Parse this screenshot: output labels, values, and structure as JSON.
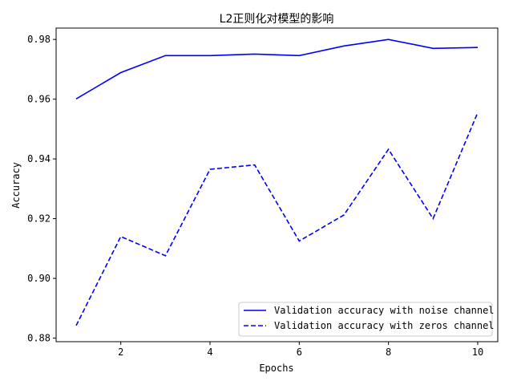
{
  "chart_data": {
    "type": "line",
    "title": "L2正则化对模型的影响",
    "xlabel": "Epochs",
    "ylabel": "Accuracy",
    "xlim": [
      0.55,
      10.45
    ],
    "ylim": [
      0.8788,
      0.9838
    ],
    "x_ticks": [
      2,
      4,
      6,
      8,
      10
    ],
    "y_ticks": [
      0.88,
      0.9,
      0.92,
      0.94,
      0.96,
      0.98
    ],
    "x_tick_labels": [
      "2",
      "4",
      "6",
      "8",
      "10"
    ],
    "y_tick_labels": [
      "0.88",
      "0.90",
      "0.92",
      "0.94",
      "0.96",
      "0.98"
    ],
    "grid": false,
    "legend_position": "bottom-right",
    "x": [
      1,
      2,
      3,
      4,
      5,
      6,
      7,
      8,
      9,
      10
    ],
    "series": [
      {
        "name": "Validation accuracy with noise channel",
        "color": "#0000ff",
        "linestyle": "solid",
        "values": [
          0.9601,
          0.9689,
          0.9746,
          0.9746,
          0.9751,
          0.9746,
          0.9778,
          0.98,
          0.977,
          0.9773
        ]
      },
      {
        "name": "Validation accuracy with zeros channel",
        "color": "#0000ff",
        "linestyle": "dashed",
        "values": [
          0.8842,
          0.914,
          0.9076,
          0.9365,
          0.938,
          0.9125,
          0.9212,
          0.9432,
          0.92,
          0.9555
        ]
      }
    ]
  }
}
